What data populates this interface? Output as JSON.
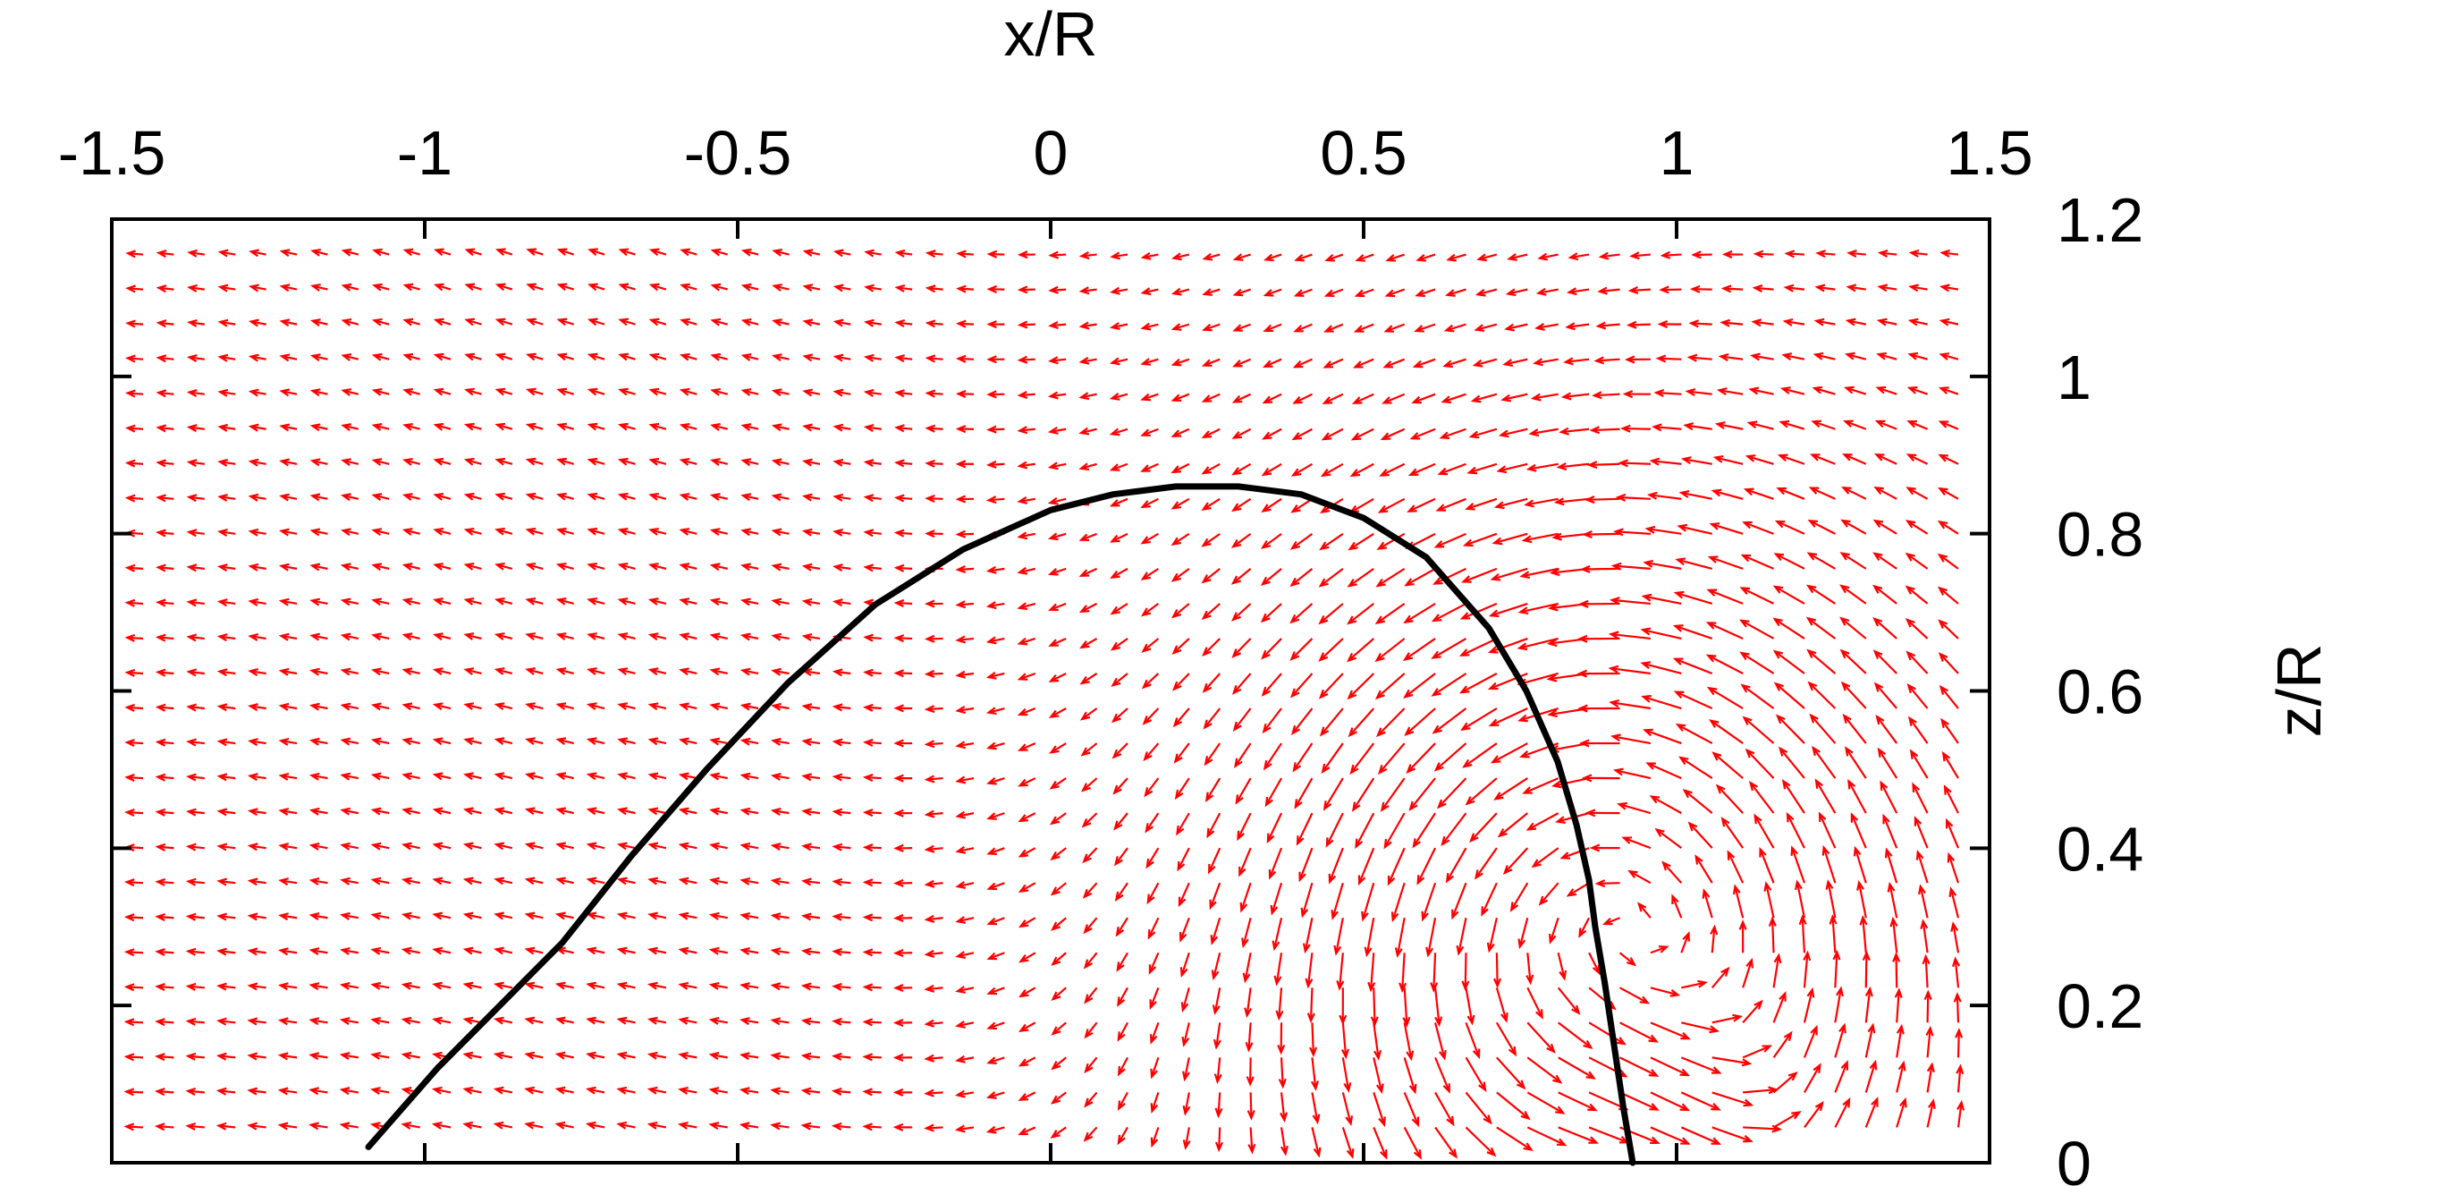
{
  "chart_data": {
    "type": "vector-field",
    "xlabel": "x/R",
    "ylabel": "z/R",
    "xlim": [
      -1.5,
      1.5
    ],
    "ylim": [
      0,
      1.2
    ],
    "x_ticks": [
      "-1.5",
      "-1",
      "-0.5",
      "0",
      "0.5",
      "1",
      "1.5"
    ],
    "y_ticks": [
      "0",
      "0.2",
      "0.4",
      "0.6",
      "0.8",
      "1",
      "1.2"
    ],
    "x_axis_position": "top",
    "y_axis_position": "right",
    "grid": false,
    "colors": {
      "vectors": "#ff0000",
      "interface": "#000000"
    },
    "vector_field": {
      "x_range": [
        -1.45,
        1.45
      ],
      "z_range": [
        0.045,
        1.155
      ],
      "nx": 60,
      "nz": 26,
      "vortex_center": [
        0.9,
        0.3
      ]
    },
    "interface_curve": {
      "x": [
        -1.09,
        -0.98,
        -0.88,
        -0.78,
        -0.67,
        -0.55,
        -0.42,
        -0.28,
        -0.14,
        0.0,
        0.1,
        0.2,
        0.3,
        0.4,
        0.5,
        0.6,
        0.7,
        0.76,
        0.81,
        0.84,
        0.86,
        0.87,
        0.885,
        0.9,
        0.915,
        0.93
      ],
      "z": [
        0.02,
        0.12,
        0.2,
        0.28,
        0.39,
        0.5,
        0.61,
        0.71,
        0.78,
        0.83,
        0.85,
        0.86,
        0.86,
        0.85,
        0.82,
        0.77,
        0.68,
        0.6,
        0.51,
        0.43,
        0.36,
        0.3,
        0.23,
        0.15,
        0.07,
        0.0
      ]
    }
  }
}
